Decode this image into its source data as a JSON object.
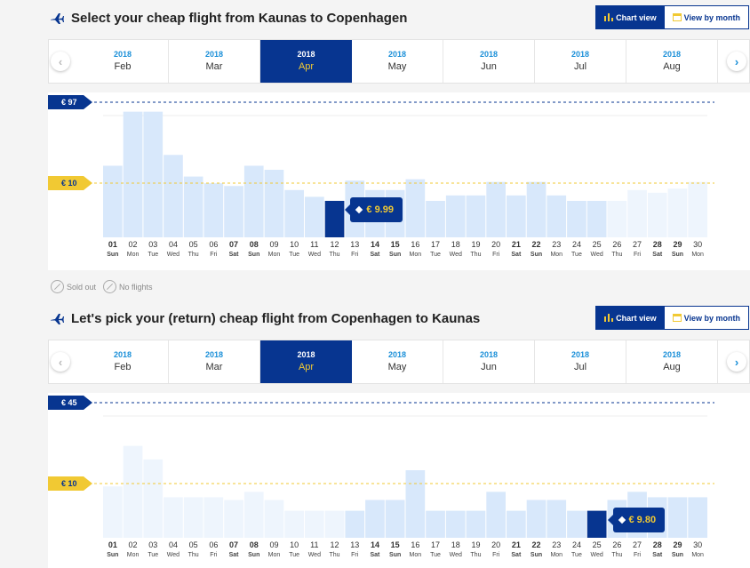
{
  "outbound": {
    "title": "Select your cheap flight from Kaunas to Copenhagen",
    "chart_view_label": "Chart view",
    "month_view_label": "View by month",
    "months": [
      {
        "year": "2018",
        "name": "Feb",
        "selected": false
      },
      {
        "year": "2018",
        "name": "Mar",
        "selected": false
      },
      {
        "year": "2018",
        "name": "Apr",
        "selected": true
      },
      {
        "year": "2018",
        "name": "May",
        "selected": false
      },
      {
        "year": "2018",
        "name": "Jun",
        "selected": false
      },
      {
        "year": "2018",
        "name": "Jul",
        "selected": false
      },
      {
        "year": "2018",
        "name": "Aug",
        "selected": false
      }
    ],
    "max_label": "€ 97",
    "avg_label": "€ 10",
    "selected_price": "€ 9.99",
    "selected_index": 11,
    "chart_data": {
      "type": "bar",
      "max": 97,
      "avg": 10,
      "days": [
        "01",
        "02",
        "03",
        "04",
        "05",
        "06",
        "07",
        "08",
        "09",
        "10",
        "11",
        "12",
        "13",
        "14",
        "15",
        "16",
        "17",
        "18",
        "19",
        "20",
        "21",
        "22",
        "23",
        "24",
        "25",
        "26",
        "27",
        "28",
        "29",
        "30"
      ],
      "weekdays": [
        "Sun",
        "Mon",
        "Tue",
        "Wed",
        "Thu",
        "Fri",
        "Sat",
        "Sun",
        "Mon",
        "Tue",
        "Wed",
        "Thu",
        "Fri",
        "Sat",
        "Sun",
        "Mon",
        "Tue",
        "Wed",
        "Thu",
        "Fri",
        "Sat",
        "Sun",
        "Mon",
        "Tue",
        "Wed",
        "Thu",
        "Fri",
        "Sat",
        "Sun",
        "Mon"
      ],
      "bold_days": [
        0,
        6,
        7,
        13,
        14,
        20,
        21,
        27,
        28
      ],
      "values": [
        53,
        93,
        93,
        61,
        45,
        40,
        38,
        53,
        50,
        35,
        30,
        27,
        42,
        35,
        35,
        43,
        27,
        31,
        31,
        41,
        31,
        41,
        31,
        27,
        27,
        27,
        35,
        33,
        36,
        41
      ],
      "faded_from": 25
    }
  },
  "return": {
    "title": "Let's pick your (return) cheap flight from Copenhagen to Kaunas",
    "chart_view_label": "Chart view",
    "month_view_label": "View by month",
    "months": [
      {
        "year": "2018",
        "name": "Feb",
        "selected": false
      },
      {
        "year": "2018",
        "name": "Mar",
        "selected": false
      },
      {
        "year": "2018",
        "name": "Apr",
        "selected": true
      },
      {
        "year": "2018",
        "name": "May",
        "selected": false
      },
      {
        "year": "2018",
        "name": "Jun",
        "selected": false
      },
      {
        "year": "2018",
        "name": "Jul",
        "selected": false
      },
      {
        "year": "2018",
        "name": "Aug",
        "selected": false
      }
    ],
    "max_label": "€ 45",
    "avg_label": "€ 10",
    "selected_price": "€ 9.80",
    "selected_index": 24,
    "chart_data": {
      "type": "bar",
      "max": 45,
      "avg": 10,
      "days": [
        "01",
        "02",
        "03",
        "04",
        "05",
        "06",
        "07",
        "08",
        "09",
        "10",
        "11",
        "12",
        "13",
        "14",
        "15",
        "16",
        "17",
        "18",
        "19",
        "20",
        "21",
        "22",
        "23",
        "24",
        "25",
        "26",
        "27",
        "28",
        "29",
        "30"
      ],
      "weekdays": [
        "Sun",
        "Mon",
        "Tue",
        "Wed",
        "Thu",
        "Fri",
        "Sat",
        "Sun",
        "Mon",
        "Tue",
        "Wed",
        "Thu",
        "Fri",
        "Sat",
        "Sun",
        "Mon",
        "Tue",
        "Wed",
        "Thu",
        "Fri",
        "Sat",
        "Sun",
        "Mon",
        "Tue",
        "Wed",
        "Thu",
        "Fri",
        "Sat",
        "Sun",
        "Mon"
      ],
      "bold_days": [
        0,
        6,
        7,
        13,
        14,
        20,
        21,
        27,
        28
      ],
      "values": [
        38,
        68,
        58,
        30,
        30,
        30,
        28,
        34,
        28,
        20,
        20,
        20,
        20,
        28,
        28,
        50,
        20,
        20,
        20,
        34,
        20,
        28,
        28,
        20,
        20,
        28,
        34,
        30,
        30,
        30
      ],
      "faded_until": 12
    }
  },
  "legend": {
    "sold_out": "Sold out",
    "no_flights": "No flights"
  },
  "colors": {
    "navy": "#073590",
    "yellow": "#f1c933",
    "bar": "#d8e8fb",
    "bar_faded": "#eef5fd",
    "link_blue": "#1a8fd8"
  }
}
